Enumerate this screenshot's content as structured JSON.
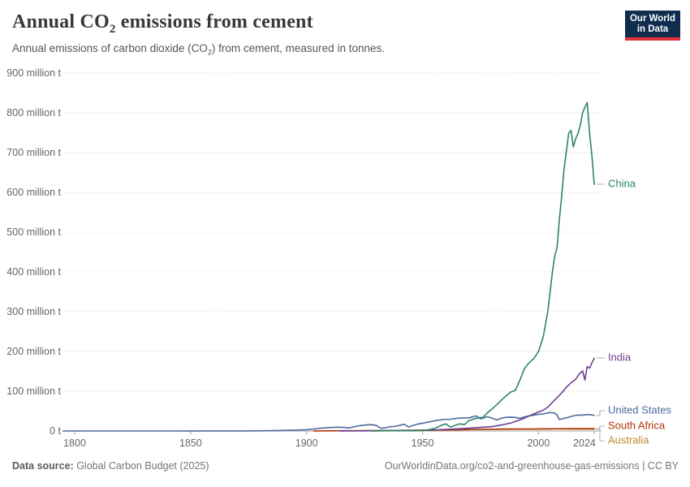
{
  "header": {
    "title_prefix": "Annual CO",
    "title_sub": "2",
    "title_suffix": " emissions from cement",
    "subtitle_prefix": "Annual emissions of carbon dioxide (CO",
    "subtitle_sub": "2",
    "subtitle_suffix": ") from cement, measured in tonnes."
  },
  "logo": {
    "line1": "Our World",
    "line2": "in Data",
    "bg_color": "#102d50",
    "accent_color": "#e5323b"
  },
  "footer": {
    "source_label": "Data source:",
    "source_value": " Global Carbon Budget (2025)",
    "credit": "OurWorldinData.org/co2-and-greenhouse-gas-emissions | CC BY"
  },
  "chart_data": {
    "type": "line",
    "title": "Annual CO₂ emissions from cement",
    "subtitle": "Annual emissions of carbon dioxide (CO₂) from cement, measured in tonnes.",
    "values_unit": "million tonnes of CO2 per year",
    "xlim": [
      1795,
      2026
    ],
    "ylim": [
      0,
      900
    ],
    "grid": "horizontal-dashed",
    "legend_position": "right-end-labels",
    "x_ticks": [
      {
        "year": 1800,
        "label": "1800",
        "dx": 0
      },
      {
        "year": 1850,
        "label": "1850",
        "dx": 0
      },
      {
        "year": 1900,
        "label": "1900",
        "dx": 0
      },
      {
        "year": 1950,
        "label": "1950",
        "dx": 0
      },
      {
        "year": 2000,
        "label": "2000",
        "dx": 0
      },
      {
        "year": 2024,
        "label": "2024",
        "dx": -12
      }
    ],
    "y_ticks": [
      {
        "value": 0,
        "label": "0 t"
      },
      {
        "value": 100,
        "label": "100 million t"
      },
      {
        "value": 200,
        "label": "200 million t"
      },
      {
        "value": 300,
        "label": "300 million t"
      },
      {
        "value": 400,
        "label": "400 million t"
      },
      {
        "value": 500,
        "label": "500 million t"
      },
      {
        "value": 600,
        "label": "600 million t"
      },
      {
        "value": 700,
        "label": "700 million t"
      },
      {
        "value": 800,
        "label": "800 million t"
      },
      {
        "value": 900,
        "label": "900 million t"
      }
    ],
    "series": [
      {
        "name": "United States",
        "id": "united-states",
        "color": "#4C6A9C",
        "label_y": 506,
        "points": [
          [
            1795,
            0.1
          ],
          [
            1820,
            0.1
          ],
          [
            1840,
            0.1
          ],
          [
            1860,
            0.2
          ],
          [
            1875,
            0.3
          ],
          [
            1885,
            0.8
          ],
          [
            1890,
            1.5
          ],
          [
            1895,
            2.2
          ],
          [
            1900,
            3.2
          ],
          [
            1903,
            5
          ],
          [
            1906,
            7
          ],
          [
            1910,
            8.5
          ],
          [
            1913,
            9.5
          ],
          [
            1916,
            9
          ],
          [
            1918,
            7.5
          ],
          [
            1920,
            10
          ],
          [
            1923,
            13.5
          ],
          [
            1926,
            15.5
          ],
          [
            1928,
            16
          ],
          [
            1930,
            14
          ],
          [
            1932,
            7
          ],
          [
            1934,
            8
          ],
          [
            1936,
            11
          ],
          [
            1938,
            11.5
          ],
          [
            1940,
            14
          ],
          [
            1942,
            17
          ],
          [
            1944,
            10
          ],
          [
            1946,
            14
          ],
          [
            1948,
            17.5
          ],
          [
            1950,
            19.5
          ],
          [
            1953,
            23
          ],
          [
            1956,
            26.5
          ],
          [
            1959,
            29
          ],
          [
            1962,
            29.5
          ],
          [
            1965,
            32
          ],
          [
            1968,
            33
          ],
          [
            1970,
            33
          ],
          [
            1973,
            38
          ],
          [
            1975,
            30.5
          ],
          [
            1978,
            36
          ],
          [
            1980,
            32
          ],
          [
            1982,
            27.5
          ],
          [
            1984,
            32
          ],
          [
            1986,
            34.5
          ],
          [
            1988,
            35
          ],
          [
            1990,
            34
          ],
          [
            1992,
            32
          ],
          [
            1995,
            37
          ],
          [
            1998,
            40
          ],
          [
            2000,
            42
          ],
          [
            2002,
            43
          ],
          [
            2005,
            46.5
          ],
          [
            2007,
            45
          ],
          [
            2008,
            40
          ],
          [
            2009,
            28.5
          ],
          [
            2010,
            30.5
          ],
          [
            2012,
            33
          ],
          [
            2014,
            36.5
          ],
          [
            2016,
            39.5
          ],
          [
            2018,
            39.5
          ],
          [
            2020,
            40.5
          ],
          [
            2022,
            41.5
          ],
          [
            2024,
            39
          ]
        ]
      },
      {
        "name": "Australia",
        "id": "australia",
        "color": "#BF8B2E",
        "label_y": 543,
        "points": [
          [
            1928,
            0.3
          ],
          [
            1938,
            0.7
          ],
          [
            1948,
            1.2
          ],
          [
            1958,
            2.2
          ],
          [
            1968,
            3.2
          ],
          [
            1978,
            4
          ],
          [
            1988,
            4.2
          ],
          [
            1998,
            4.4
          ],
          [
            2008,
            5
          ],
          [
            2018,
            4.6
          ],
          [
            2024,
            4.4
          ]
        ]
      },
      {
        "name": "South Africa",
        "id": "south-africa",
        "color": "#B13507",
        "label_y": 525,
        "points": [
          [
            1903,
            0.3
          ],
          [
            1915,
            0.6
          ],
          [
            1925,
            0.9
          ],
          [
            1935,
            1.2
          ],
          [
            1945,
            1.8
          ],
          [
            1955,
            2.4
          ],
          [
            1965,
            3
          ],
          [
            1975,
            4
          ],
          [
            1985,
            4.8
          ],
          [
            1995,
            5
          ],
          [
            2005,
            5.5
          ],
          [
            2015,
            6
          ],
          [
            2024,
            6
          ]
        ]
      },
      {
        "name": "India",
        "id": "india",
        "color": "#6D3E91",
        "label_y": 441,
        "points": [
          [
            1914,
            0.2
          ],
          [
            1925,
            0.4
          ],
          [
            1935,
            0.8
          ],
          [
            1945,
            1.2
          ],
          [
            1950,
            1.6
          ],
          [
            1955,
            2.4
          ],
          [
            1960,
            4
          ],
          [
            1965,
            5.5
          ],
          [
            1970,
            7
          ],
          [
            1975,
            9
          ],
          [
            1980,
            11
          ],
          [
            1984,
            15
          ],
          [
            1988,
            20
          ],
          [
            1990,
            24
          ],
          [
            1993,
            30
          ],
          [
            1996,
            38
          ],
          [
            2000,
            48
          ],
          [
            2002,
            52
          ],
          [
            2004,
            60
          ],
          [
            2006,
            72
          ],
          [
            2008,
            84
          ],
          [
            2010,
            96
          ],
          [
            2012,
            110
          ],
          [
            2014,
            121
          ],
          [
            2016,
            130
          ],
          [
            2017,
            139
          ],
          [
            2018,
            146
          ],
          [
            2019,
            151
          ],
          [
            2020,
            128
          ],
          [
            2021,
            162
          ],
          [
            2022,
            158
          ],
          [
            2023,
            171
          ],
          [
            2024,
            183
          ]
        ]
      },
      {
        "name": "China",
        "id": "china",
        "color": "#2C8465",
        "label_y": 227,
        "points": [
          [
            1928,
            0.3
          ],
          [
            1935,
            0.8
          ],
          [
            1942,
            1.2
          ],
          [
            1946,
            0.6
          ],
          [
            1950,
            1.4
          ],
          [
            1953,
            3.5
          ],
          [
            1956,
            8
          ],
          [
            1958,
            14
          ],
          [
            1960,
            18
          ],
          [
            1962,
            10
          ],
          [
            1964,
            14
          ],
          [
            1966,
            18
          ],
          [
            1968,
            16
          ],
          [
            1970,
            26
          ],
          [
            1972,
            30
          ],
          [
            1974,
            33
          ],
          [
            1976,
            34
          ],
          [
            1978,
            46
          ],
          [
            1980,
            56
          ],
          [
            1982,
            66
          ],
          [
            1984,
            78
          ],
          [
            1986,
            88
          ],
          [
            1988,
            98
          ],
          [
            1990,
            102
          ],
          [
            1992,
            128
          ],
          [
            1994,
            158
          ],
          [
            1996,
            172
          ],
          [
            1998,
            182
          ],
          [
            2000,
            200
          ],
          [
            2002,
            236
          ],
          [
            2004,
            300
          ],
          [
            2005,
            350
          ],
          [
            2006,
            400
          ],
          [
            2007,
            440
          ],
          [
            2008,
            462
          ],
          [
            2009,
            532
          ],
          [
            2010,
            592
          ],
          [
            2011,
            658
          ],
          [
            2012,
            702
          ],
          [
            2013,
            748
          ],
          [
            2014,
            756
          ],
          [
            2015,
            714
          ],
          [
            2016,
            735
          ],
          [
            2017,
            748
          ],
          [
            2018,
            768
          ],
          [
            2019,
            800
          ],
          [
            2020,
            814
          ],
          [
            2021,
            826
          ],
          [
            2022,
            748
          ],
          [
            2023,
            694
          ],
          [
            2024,
            620
          ]
        ]
      }
    ],
    "style": {
      "gridline_color": "#dddddd",
      "axis_color": "#a6a6a6",
      "tick_label_color": "#666666",
      "connector_color": "#b3b3b3"
    }
  }
}
